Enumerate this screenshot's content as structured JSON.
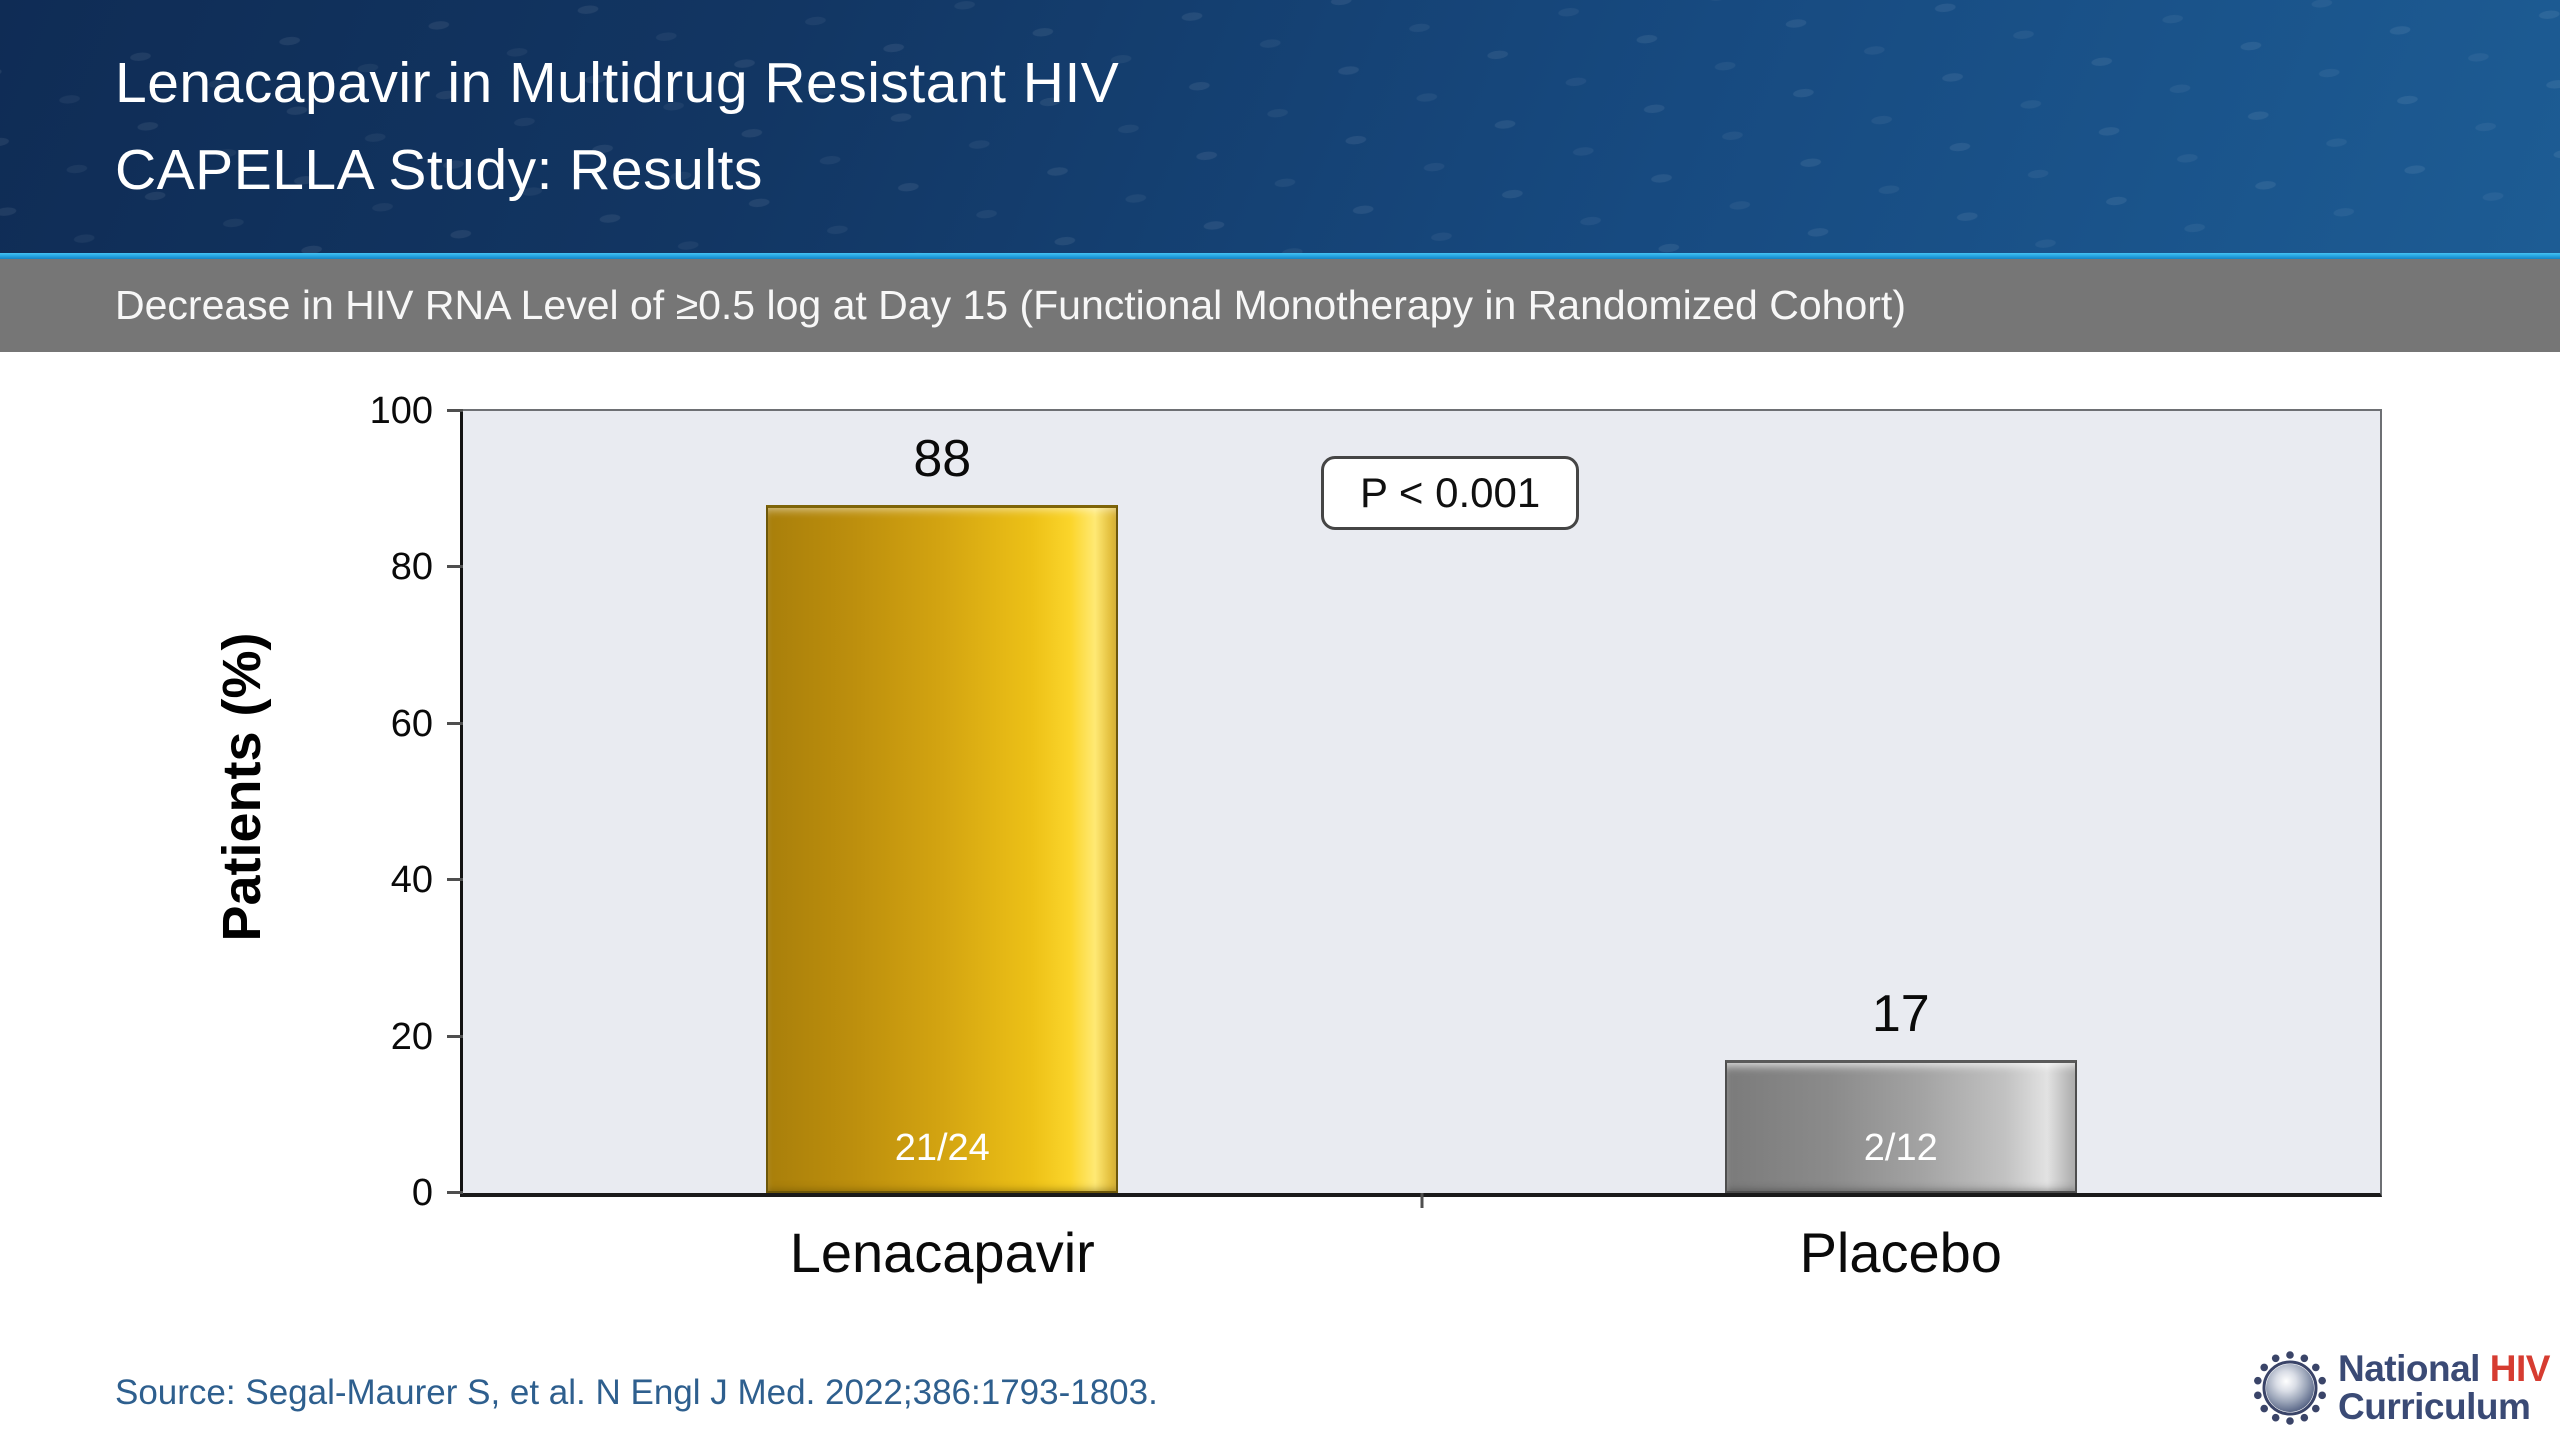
{
  "header": {
    "title_line1": "Lenacapavir in Multidrug Resistant HIV",
    "title_line2": "CAPELLA Study: Results"
  },
  "subtitle_bar": {
    "text": "Decrease in HIV RNA Level of ≥0.5 log at Day 15 (Functional Monotherapy in Randomized Cohort)"
  },
  "chart_data": {
    "type": "bar",
    "title": "",
    "categories": [
      "Lenacapavir",
      "Placebo"
    ],
    "values": [
      88,
      17
    ],
    "value_labels": [
      "88",
      "17"
    ],
    "fraction_labels": [
      "21/24",
      "2/12"
    ],
    "bar_styles": [
      "gold",
      "silver"
    ],
    "ylabel": "Patients (%)",
    "ylim": [
      0,
      100
    ],
    "yticks": [
      0,
      20,
      40,
      60,
      80,
      100
    ],
    "annotation": "P < 0.001",
    "grid": false,
    "legend_position": "none",
    "plot_background": "#e9ebf1"
  },
  "footer": {
    "source": "Source: Segal-Maurer S, et al. N Engl J Med. 2022;386:1793-1803.",
    "logo": {
      "line1_a": "National ",
      "line1_b": "HIV",
      "line2": "Curriculum"
    }
  },
  "colors": {
    "header_gradient_start": "#0f2c55",
    "header_gradient_end": "#1d5c94",
    "accent_line": "#28a8e4",
    "subtitle_bg": "#767676",
    "bar_gold": "#e8b90f",
    "bar_silver": "#a8a8a8",
    "source_text": "#2e5f8e",
    "logo_navy": "#3a4a75",
    "logo_red": "#d63c31"
  }
}
